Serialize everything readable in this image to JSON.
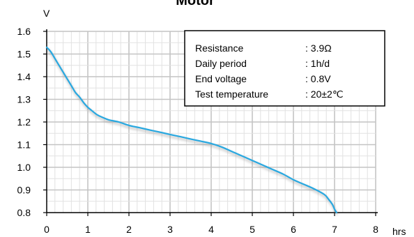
{
  "chart_data": {
    "type": "line",
    "title": "Motor",
    "xlabel": "hrs",
    "ylabel": "V",
    "xlim": [
      0,
      8
    ],
    "ylim": [
      0.8,
      1.6
    ],
    "x_ticks": [
      "0",
      "1",
      "2",
      "3",
      "4",
      "5",
      "6",
      "7",
      "8"
    ],
    "y_ticks": [
      "0.8",
      "0.9",
      "1.0",
      "1.1",
      "1.2",
      "1.3",
      "1.4",
      "1.5",
      "1.6"
    ],
    "grid": true,
    "series": [
      {
        "x": [
          0,
          0.1,
          0.2,
          0.3,
          0.4,
          0.5,
          0.6,
          0.7,
          0.8,
          0.9,
          1.0,
          1.1,
          1.2,
          1.3,
          1.5,
          1.75,
          2.0,
          2.25,
          2.5,
          2.75,
          3.0,
          3.25,
          3.5,
          3.75,
          4.0,
          4.25,
          4.5,
          4.75,
          5.0,
          5.25,
          5.5,
          5.75,
          6.0,
          6.25,
          6.5,
          6.75,
          6.85,
          6.95,
          7.0,
          7.05
        ],
        "y": [
          1.53,
          1.51,
          1.48,
          1.45,
          1.42,
          1.39,
          1.36,
          1.33,
          1.31,
          1.285,
          1.265,
          1.25,
          1.235,
          1.225,
          1.21,
          1.2,
          1.185,
          1.175,
          1.165,
          1.155,
          1.145,
          1.135,
          1.125,
          1.115,
          1.105,
          1.09,
          1.07,
          1.05,
          1.03,
          1.01,
          0.99,
          0.97,
          0.945,
          0.925,
          0.905,
          0.88,
          0.86,
          0.835,
          0.815,
          0.8
        ]
      }
    ],
    "color": "#29a8e0",
    "info_box": {
      "rows": [
        {
          "label": "Resistance",
          "value": ": 3.9Ω"
        },
        {
          "label": "Daily period",
          "value": ": 1h/d"
        },
        {
          "label": "End voltage",
          "value": ": 0.8V"
        },
        {
          "label": "Test temperature",
          "value": ": 20±2℃"
        }
      ]
    }
  }
}
